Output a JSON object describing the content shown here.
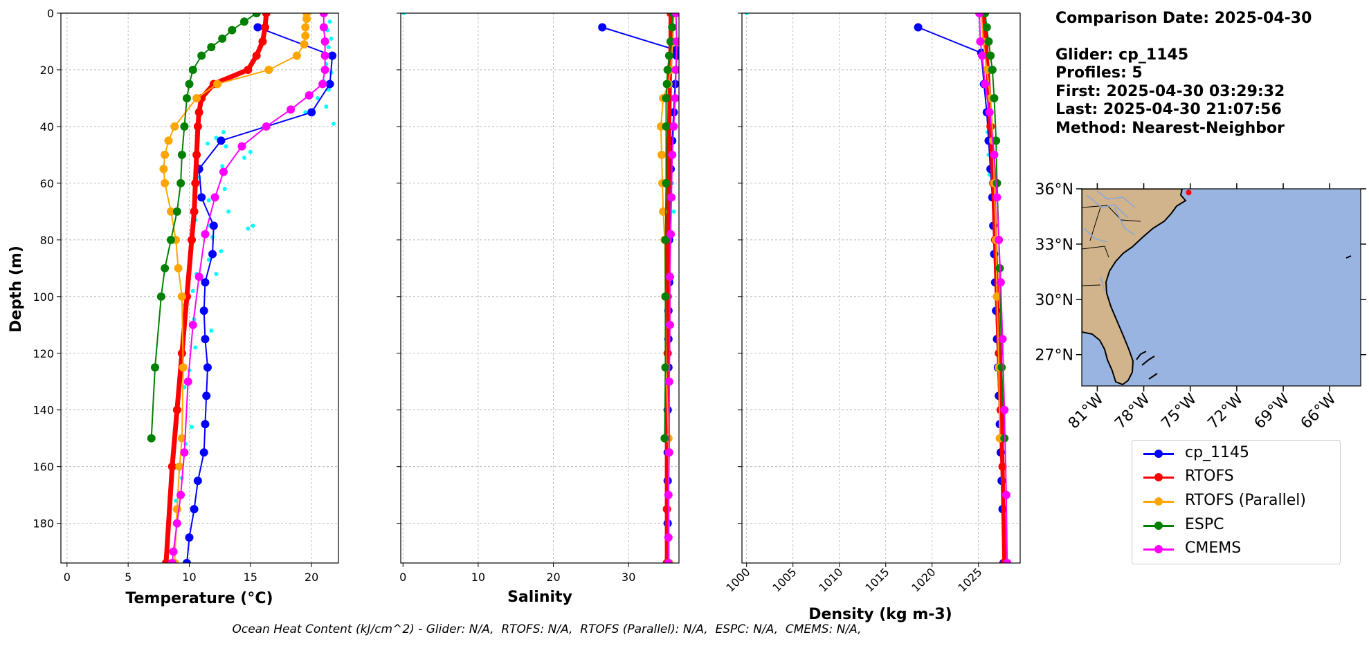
{
  "info": {
    "comparison": "Comparison Date: 2025-04-30",
    "glider": "Glider: cp_1145",
    "profiles": "Profiles: 5",
    "first": "First: 2025-04-30 03:29:32",
    "last": "Last: 2025-04-30 21:07:56",
    "method": "Method: Nearest-Neighbor"
  },
  "footer": "Ocean Heat Content (kJ/cm^2) - Glider: N/A,  RTOFS: N/A,  RTOFS (Parallel): N/A,  ESPC: N/A,  CMEMS: N/A,",
  "legend": [
    {
      "label": "cp_1145",
      "color": "#0000ff"
    },
    {
      "label": "RTOFS",
      "color": "#ff0000"
    },
    {
      "label": "RTOFS (Parallel)",
      "color": "#ffa500"
    },
    {
      "label": "ESPC",
      "color": "#008000"
    },
    {
      "label": "CMEMS",
      "color": "#ff00ff"
    }
  ],
  "chart_data": [
    {
      "type": "line",
      "xlabel": "Temperature (°C)",
      "ylabel": "Depth (m)",
      "xlim": [
        -0.5,
        22.2
      ],
      "ylim": [
        194,
        0
      ],
      "xticks": [
        0,
        5,
        10,
        15,
        20
      ],
      "yticks": [
        0,
        20,
        40,
        60,
        80,
        100,
        120,
        140,
        160,
        180
      ],
      "grid": true,
      "raw_scatter": {
        "color": "#00ffff",
        "x": [
          21.5,
          21.3,
          21.6,
          21.4,
          21.5,
          21.2,
          21.6,
          21.0,
          21.4,
          20.5,
          21.2,
          19.5,
          21.8,
          12.8,
          12.2,
          11.5,
          13.0,
          15.0,
          14.5,
          12.7,
          10.8,
          12.9,
          11.6,
          13.2,
          10.5,
          11.7,
          15.2,
          14.8,
          11.9,
          12.6,
          11.6,
          10.6,
          12.2,
          11.2,
          10.3,
          9.6,
          10.4,
          11.8,
          10.5,
          10.0,
          9.6,
          9.0,
          10.2,
          9.7,
          8.6,
          9.4,
          8.9,
          8.3,
          8.6
        ],
        "y": [
          3,
          6,
          9,
          12,
          15,
          18,
          21,
          24,
          27,
          30,
          33,
          35,
          39,
          42,
          44,
          46,
          47,
          49,
          51,
          54,
          58,
          62,
          66,
          70,
          73,
          75,
          75,
          76,
          79,
          84,
          87,
          92,
          92,
          95,
          98,
          103,
          108,
          112,
          118,
          126,
          132,
          140,
          146,
          152,
          158,
          164,
          172,
          180,
          190
        ]
      },
      "series": [
        {
          "name": "cp_1145",
          "color": "#0000ff",
          "lw": 2,
          "x": [
            15.6,
            21.7,
            21.5,
            20.0,
            12.6,
            10.8,
            11.0,
            12.0,
            11.9,
            11.3,
            11.2,
            11.3,
            11.5,
            11.4,
            11.3,
            11.2,
            10.7,
            10.4,
            10.0,
            9.8
          ],
          "y": [
            5,
            15,
            25,
            35,
            45,
            55,
            65,
            75,
            85,
            95,
            105,
            115,
            125,
            135,
            145,
            155,
            165,
            175,
            185,
            194
          ]
        },
        {
          "name": "RTOFS",
          "color": "#ff0000",
          "lw": 7,
          "x": [
            16.3,
            16.2,
            16.0,
            15.5,
            14.8,
            12.0,
            11.0,
            10.8,
            10.7,
            10.6,
            10.5,
            10.4,
            10.2,
            9.8,
            9.4,
            9.0,
            8.6,
            8.1
          ],
          "y": [
            0,
            5,
            10,
            15,
            20,
            25,
            30,
            35,
            40,
            50,
            60,
            70,
            80,
            100,
            120,
            140,
            160,
            194
          ]
        },
        {
          "name": "RTOFS (Parallel)",
          "color": "#ffa500",
          "lw": 2,
          "x": [
            19.6,
            19.6,
            19.5,
            19.5,
            19.4,
            18.8,
            16.5,
            12.3,
            10.6,
            8.8,
            8.3,
            8.0,
            7.9,
            8.0,
            8.5,
            8.9,
            9.1,
            9.4,
            9.5,
            9.4,
            9.2,
            9.0,
            8.8
          ],
          "y": [
            0,
            2,
            5,
            8,
            11,
            15,
            20,
            25,
            30,
            40,
            45,
            50,
            55,
            60,
            70,
            80,
            90,
            100,
            125,
            150,
            160,
            175,
            194
          ]
        },
        {
          "name": "ESPC",
          "color": "#008000",
          "lw": 2,
          "x": [
            15.5,
            14.5,
            13.5,
            12.7,
            11.8,
            11.0,
            10.3,
            10.0,
            9.8,
            9.6,
            9.4,
            9.3,
            9.0,
            8.5,
            8.0,
            7.7,
            7.2,
            6.9
          ],
          "y": [
            0,
            3,
            6,
            9,
            12,
            15,
            20,
            25,
            30,
            40,
            50,
            60,
            70,
            80,
            90,
            100,
            125,
            150
          ]
        },
        {
          "name": "CMEMS",
          "color": "#ff00ff",
          "lw": 2,
          "x": [
            21.0,
            21.0,
            21.1,
            21.1,
            21.1,
            20.9,
            19.8,
            18.3,
            16.3,
            14.3,
            12.8,
            12.1,
            11.3,
            10.8,
            10.3,
            9.9,
            9.6,
            9.3,
            9.0,
            8.7,
            8.6
          ],
          "y": [
            0,
            5,
            10,
            15,
            20,
            25,
            29,
            34,
            40,
            47,
            56,
            65,
            78,
            93,
            110,
            130,
            155,
            170,
            180,
            190,
            194
          ]
        }
      ]
    },
    {
      "type": "line",
      "xlabel": "Salinity",
      "xlim": [
        -0.3,
        36.7
      ],
      "ylim": [
        194,
        0
      ],
      "xticks": [
        0,
        10,
        20,
        30
      ],
      "yticks": [
        0,
        20,
        40,
        60,
        80,
        100,
        120,
        140,
        160,
        180
      ],
      "grid": true,
      "raw_scatter": {
        "color": "#00ffff",
        "x": [
          0.1,
          36.0,
          36.2,
          35.9,
          36.1,
          35.8,
          36.0
        ],
        "y": [
          0,
          20,
          30,
          40,
          50,
          60,
          70
        ]
      },
      "series": [
        {
          "name": "cp_1145",
          "color": "#0000ff",
          "lw": 2,
          "x": [
            26.5,
            36.3,
            36.4,
            36.2,
            36.0,
            35.8,
            35.6,
            35.5,
            35.4,
            35.4,
            35.3,
            35.3,
            35.3,
            35.2,
            35.2,
            35.2,
            35.2,
            35.1
          ],
          "y": [
            5,
            13,
            15,
            25,
            35,
            45,
            55,
            65,
            80,
            95,
            105,
            115,
            125,
            140,
            155,
            165,
            180,
            194
          ]
        },
        {
          "name": "RTOFS",
          "color": "#ff0000",
          "lw": 6,
          "x": [
            35.6,
            35.6,
            35.5,
            35.4,
            35.3,
            35.2,
            35.2,
            35.2,
            35.1,
            35.1,
            35.1
          ],
          "y": [
            0,
            10,
            20,
            40,
            60,
            80,
            100,
            120,
            150,
            175,
            194
          ]
        },
        {
          "name": "RTOFS (Parallel)",
          "color": "#ffa500",
          "lw": 2,
          "x": [
            36.0,
            35.9,
            35.6,
            35.3,
            34.6,
            34.3,
            34.4,
            34.5,
            34.6,
            34.8,
            34.9,
            35.0,
            35.3,
            35.4
          ],
          "y": [
            0,
            10,
            20,
            25,
            30,
            40,
            50,
            60,
            70,
            80,
            100,
            125,
            150,
            194
          ]
        },
        {
          "name": "ESPC",
          "color": "#008000",
          "lw": 2,
          "x": [
            35.9,
            35.8,
            35.6,
            35.4,
            35.2,
            35.1,
            35.0,
            35.0,
            35.0,
            34.9,
            34.9,
            34.9,
            34.8
          ],
          "y": [
            0,
            5,
            10,
            15,
            20,
            25,
            30,
            40,
            60,
            80,
            100,
            125,
            150
          ]
        },
        {
          "name": "CMEMS",
          "color": "#ff00ff",
          "lw": 2,
          "x": [
            36.3,
            36.4,
            36.3,
            36.2,
            36.0,
            35.8,
            35.7,
            35.6,
            35.5,
            35.5,
            35.4,
            35.4,
            35.3,
            35.3,
            35.3
          ],
          "y": [
            0,
            10,
            20,
            30,
            40,
            50,
            65,
            78,
            93,
            110,
            130,
            155,
            170,
            185,
            194
          ]
        }
      ]
    },
    {
      "type": "line",
      "xlabel": "Density (kg m-3)",
      "xlim": [
        999.5,
        1029.5
      ],
      "ylim": [
        194,
        0
      ],
      "xticks": [
        1000,
        1005,
        1010,
        1015,
        1020,
        1025
      ],
      "yticks": [
        0,
        20,
        40,
        60,
        80,
        100,
        120,
        140,
        160,
        180
      ],
      "grid": true,
      "raw_scatter": {
        "color": "#00ffff",
        "x": [
          1000.0,
          1025.8,
          1025.9,
          1026.0,
          1026.1,
          1026.2,
          1026.3
        ],
        "y": [
          0,
          25,
          35,
          42,
          50,
          57,
          65
        ]
      },
      "series": [
        {
          "name": "cp_1145",
          "color": "#0000ff",
          "lw": 2,
          "x": [
            1018.5,
            1025.3,
            1025.6,
            1025.9,
            1026.1,
            1026.3,
            1026.5,
            1026.6,
            1026.7,
            1026.8,
            1026.9,
            1027.0,
            1027.1,
            1027.2,
            1027.3,
            1027.4,
            1027.5,
            1027.6,
            1027.7
          ],
          "y": [
            5,
            14,
            25,
            35,
            45,
            55,
            65,
            75,
            85,
            95,
            105,
            115,
            125,
            135,
            145,
            155,
            165,
            175,
            194
          ]
        },
        {
          "name": "RTOFS",
          "color": "#ff0000",
          "lw": 6,
          "x": [
            1025.6,
            1025.8,
            1026.0,
            1026.3,
            1026.6,
            1026.8,
            1027.0,
            1027.2,
            1027.4,
            1027.6,
            1027.8
          ],
          "y": [
            0,
            10,
            20,
            40,
            60,
            80,
            100,
            120,
            140,
            160,
            194
          ]
        },
        {
          "name": "RTOFS (Parallel)",
          "color": "#ffa500",
          "lw": 2,
          "x": [
            1025.3,
            1025.5,
            1025.9,
            1026.3,
            1026.6,
            1026.7,
            1026.9,
            1027.0,
            1027.2,
            1027.3
          ],
          "y": [
            0,
            10,
            20,
            30,
            45,
            60,
            80,
            100,
            125,
            150
          ]
        },
        {
          "name": "ESPC",
          "color": "#008000",
          "lw": 2,
          "x": [
            1025.7,
            1025.9,
            1026.1,
            1026.3,
            1026.5,
            1026.7,
            1026.9,
            1027.0,
            1027.3,
            1027.5,
            1027.8
          ],
          "y": [
            0,
            5,
            10,
            15,
            20,
            30,
            45,
            60,
            90,
            125,
            150
          ]
        },
        {
          "name": "CMEMS",
          "color": "#ff00ff",
          "lw": 2,
          "x": [
            1025.1,
            1025.2,
            1025.4,
            1025.7,
            1026.2,
            1026.7,
            1027.0,
            1027.2,
            1027.4,
            1027.6,
            1027.8,
            1028.0,
            1028.1
          ],
          "y": [
            0,
            10,
            15,
            25,
            35,
            50,
            65,
            80,
            95,
            115,
            140,
            170,
            194
          ]
        }
      ]
    },
    {
      "type": "map",
      "lon_range": [
        -82.0,
        -64.0
      ],
      "lat_range": [
        25.3,
        36.0
      ],
      "xticks": [
        "81°W",
        "78°W",
        "75°W",
        "72°W",
        "69°W",
        "66°W"
      ],
      "xtick_values": [
        -81,
        -78,
        -75,
        -72,
        -69,
        -66
      ],
      "yticks": [
        "36°N",
        "33°N",
        "30°N",
        "27°N"
      ],
      "ytick_values": [
        36,
        33,
        30,
        27
      ],
      "land_color": "#d2b48c",
      "ocean_color": "#99b4e0",
      "marker": {
        "lon": -75.1,
        "lat": 35.8,
        "color": "#ff0000"
      }
    }
  ]
}
